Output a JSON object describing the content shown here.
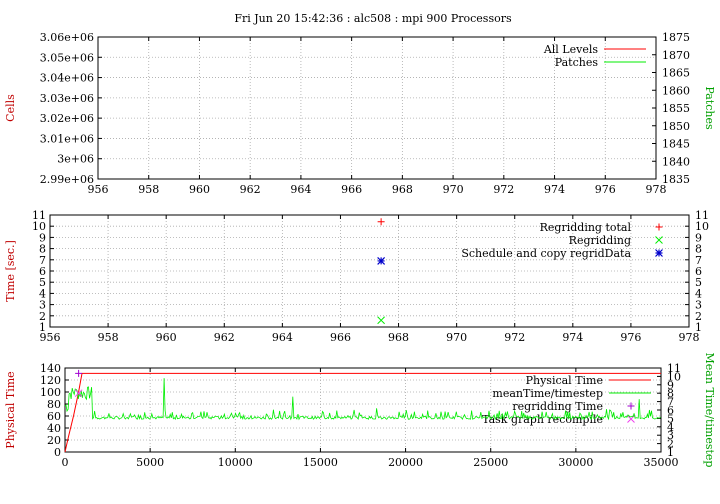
{
  "title": "Fri Jun 20 15:42:36 : alc508 : mpi 900 Processors",
  "colors": {
    "red": "#ff0000",
    "green": "#00ee00",
    "blue": "#0000cc",
    "purple": "#a000d0",
    "magenta": "#ee40ee",
    "ylabel_red": "#c00000",
    "ylabel_green": "#00a000"
  },
  "chart_data": [
    {
      "type": "line",
      "xlim": [
        956,
        978
      ],
      "xticks": [
        "956",
        "958",
        "960",
        "962",
        "964",
        "966",
        "968",
        "970",
        "972",
        "974",
        "976",
        "978"
      ],
      "ylim": [
        2990000,
        3060000
      ],
      "yticks": [
        "2.99e+06",
        "3e+06",
        "3.01e+06",
        "3.02e+06",
        "3.03e+06",
        "3.04e+06",
        "3.05e+06",
        "3.06e+06"
      ],
      "y2lim": [
        1835,
        1875
      ],
      "y2ticks": [
        "1835",
        "1840",
        "1845",
        "1850",
        "1855",
        "1860",
        "1865",
        "1870",
        "1875"
      ],
      "ylabel": "Cells",
      "y2label": "Patches",
      "grid": true,
      "legend_position": "top-right",
      "series": [
        {
          "name": "All Levels",
          "color": "#ff0000",
          "values": []
        },
        {
          "name": "Patches",
          "color": "#00ee00",
          "values": []
        }
      ]
    },
    {
      "type": "scatter",
      "xlim": [
        956,
        978
      ],
      "xticks": [
        "956",
        "958",
        "960",
        "962",
        "964",
        "966",
        "968",
        "970",
        "972",
        "974",
        "976",
        "978"
      ],
      "ylim": [
        1,
        11
      ],
      "yticks": [
        "1",
        "2",
        "3",
        "4",
        "5",
        "6",
        "7",
        "8",
        "9",
        "10",
        "11"
      ],
      "y2ticks": [
        "1",
        "2",
        "3",
        "4",
        "5",
        "6",
        "7",
        "8",
        "9",
        "10",
        "11"
      ],
      "ylabel": "Time [sec.]",
      "grid": true,
      "legend_position": "top-right",
      "series": [
        {
          "name": "Regridding total",
          "color": "#ff0000",
          "marker": "+",
          "points": [
            [
              967.4,
              10.4
            ]
          ]
        },
        {
          "name": "Regridding",
          "color": "#00ee00",
          "marker": "x",
          "points": [
            [
              967.4,
              1.6
            ]
          ]
        },
        {
          "name": "Schedule and copy regridData",
          "color": "#0000cc",
          "marker": "*",
          "points": [
            [
              967.4,
              6.9
            ]
          ]
        }
      ]
    },
    {
      "type": "line",
      "xlim": [
        0,
        35000
      ],
      "xticks": [
        "0",
        "5000",
        "10000",
        "15000",
        "20000",
        "25000",
        "30000",
        "35000"
      ],
      "ylim": [
        0,
        140
      ],
      "yticks": [
        "0",
        "20",
        "40",
        "60",
        "80",
        "100",
        "120",
        "140"
      ],
      "y2lim": [
        1,
        11
      ],
      "y2ticks": [
        "1",
        "2",
        "3",
        "4",
        "5",
        "6",
        "7",
        "8",
        "9",
        "10",
        "11"
      ],
      "ylabel": "Physical Time",
      "y2label": "Mean Time/timestep",
      "grid": true,
      "legend_position": "top-right",
      "series": [
        {
          "name": "Physical Time",
          "color": "#ff0000",
          "points": [
            [
              0,
              0
            ],
            [
              200,
              25
            ],
            [
              500,
              60
            ],
            [
              800,
              100
            ],
            [
              1000,
              131
            ],
            [
              35000,
              131
            ]
          ]
        },
        {
          "name": "meanTime/timestep",
          "color": "#00ee00",
          "base": 4.9,
          "spikes": [
            [
              600,
              8.5
            ],
            [
              2600,
              5.6
            ],
            [
              5800,
              9.8
            ],
            [
              8000,
              5.8
            ],
            [
              10000,
              5.6
            ],
            [
              13400,
              7.6
            ],
            [
              17000,
              6.0
            ],
            [
              18300,
              6.2
            ],
            [
              20500,
              5.8
            ],
            [
              23000,
              5.8
            ],
            [
              25500,
              5.9
            ],
            [
              28000,
              5.8
            ],
            [
              31800,
              6.1
            ],
            [
              33700,
              7.3
            ],
            [
              34300,
              6.0
            ]
          ]
        },
        {
          "name": "regridding Time",
          "color": "#a000d0",
          "marker": "+",
          "points": [
            [
              800,
              131
            ]
          ]
        },
        {
          "name": "Task graph recompile",
          "color": "#ee40ee",
          "marker": "x",
          "points": [
            [
              800,
              8
            ]
          ]
        }
      ]
    }
  ]
}
